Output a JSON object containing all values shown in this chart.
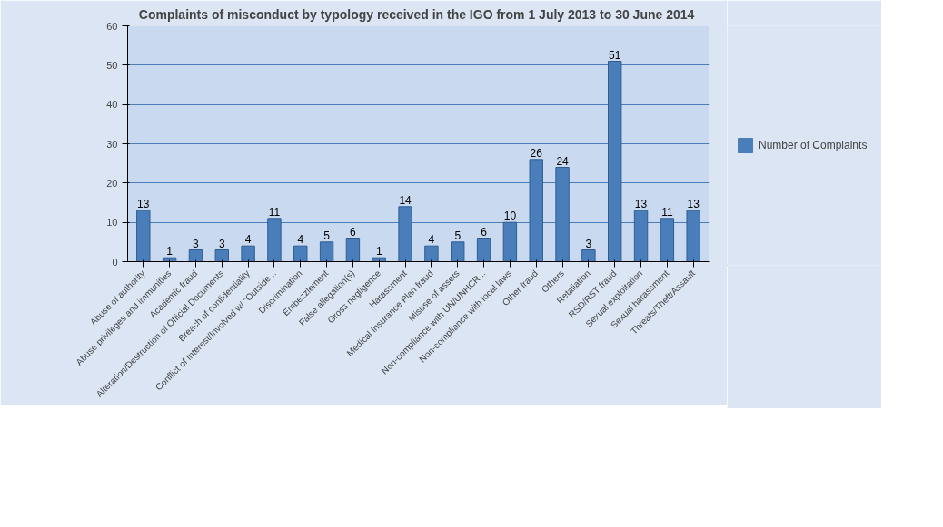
{
  "chart_data": {
    "type": "bar",
    "title": "Complaints of misconduct by typology received in the IGO  from 1 July 2013 to 30 June 2014",
    "categories": [
      "Abuse of authority",
      "Abuse privileges and immunities",
      "Academic fraud",
      "Alteration/Destruction of Official Documents",
      "Breach of confidentiality",
      "Conflict of Interest/Involved w/ \"Outside...",
      "Discrimination",
      "Embezzlement",
      "False allegation(s)",
      "Gross negligence",
      "Harassment",
      "Medical Insurance Plan fraud",
      "Misuse of assets",
      "Non-compliance with UN/UNHCR...",
      "Non-compliance with local laws",
      "Other fraud",
      "Others",
      "Retaliation",
      "RSD/RST fraud",
      "Sexual exploitation",
      "Sexual harassment",
      "Threats/Theft/Assault"
    ],
    "series": [
      {
        "name": "Number of Complaints",
        "color": "#4a7ebb",
        "values": [
          13,
          1,
          3,
          3,
          4,
          11,
          4,
          5,
          6,
          1,
          14,
          4,
          5,
          6,
          10,
          26,
          24,
          3,
          51,
          13,
          11,
          13
        ]
      }
    ],
    "ylim": [
      0,
      60
    ],
    "yticks": [
      0,
      10,
      20,
      30,
      40,
      50,
      60
    ],
    "grid": "y",
    "legend": "right",
    "data_labels": true
  }
}
